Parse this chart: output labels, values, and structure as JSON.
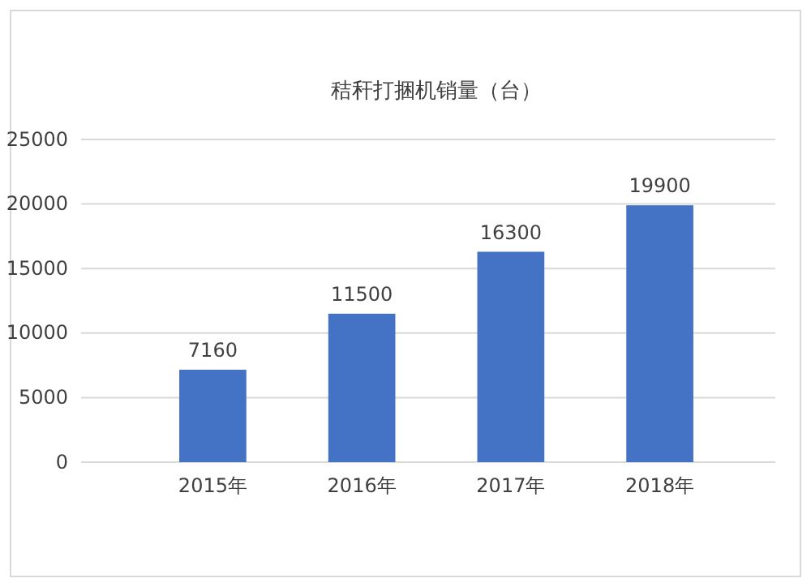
{
  "chart_data": {
    "type": "bar",
    "title": "秸秆打捆机销量（台）",
    "categories": [
      "2015年",
      "2016年",
      "2017年",
      "2018年"
    ],
    "values": [
      7160,
      11500,
      16300,
      19900
    ],
    "color": "#4472c4",
    "ylim": [
      0,
      25000
    ],
    "yticks": [
      0,
      5000,
      10000,
      15000,
      20000,
      25000
    ],
    "grid": "y",
    "data_labels": true
  }
}
